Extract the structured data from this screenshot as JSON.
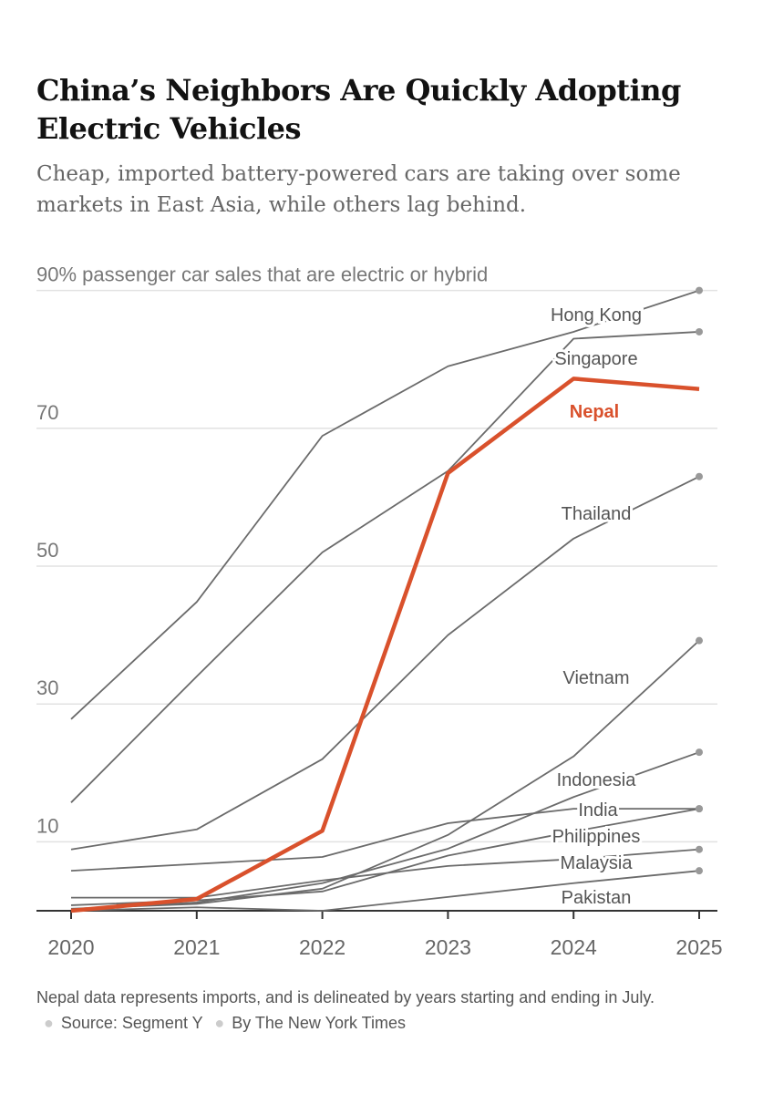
{
  "header": {
    "title": "China’s Neighbors Are Quickly Adopting Electric Vehicles",
    "subtitle": "Cheap, imported battery-powered cars are taking over some markets in East Asia, while others lag behind."
  },
  "chart_data": {
    "type": "line",
    "ylabel": "passenger car sales that are electric or hybrid",
    "y_top_label": "90% passenger car sales that are electric or hybrid",
    "x": [
      2020,
      2021,
      2022,
      2023,
      2024,
      2025
    ],
    "x_tick_labels": [
      "2020",
      "2021",
      "2022",
      "2023",
      "2024",
      "2025"
    ],
    "y_ticks": [
      10,
      30,
      50,
      70
    ],
    "y_tick_labels": [
      "10",
      "30",
      "50",
      "70"
    ],
    "ylim": [
      0,
      90
    ],
    "grid": true,
    "highlight_color": "#d9512c",
    "line_color": "#6b6b6b",
    "series": [
      {
        "name": "Hong Kong",
        "values": [
          27.8,
          44.8,
          68.9,
          79,
          84,
          90
        ]
      },
      {
        "name": "Singapore",
        "values": [
          15.7,
          34,
          52,
          63.8,
          83,
          84
        ]
      },
      {
        "name": "Thailand",
        "values": [
          8.9,
          11.8,
          22,
          40,
          54,
          63
        ]
      },
      {
        "name": "Vietnam",
        "values": [
          0.3,
          1,
          3.2,
          11,
          22.4,
          39.2
        ]
      },
      {
        "name": "Indonesia",
        "values": [
          0.2,
          1.2,
          4,
          9,
          16.5,
          23
        ]
      },
      {
        "name": "India",
        "values": [
          5.8,
          6.8,
          7.8,
          12.7,
          14.8,
          14.8
        ]
      },
      {
        "name": "Philippines",
        "values": [
          0.8,
          1.5,
          2.8,
          8,
          11.5,
          14.8
        ]
      },
      {
        "name": "Malaysia",
        "values": [
          1.9,
          1.9,
          4.4,
          6.5,
          7.5,
          8.9
        ]
      },
      {
        "name": "Pakistan",
        "values": [
          0,
          0.5,
          0,
          2,
          4,
          5.8
        ]
      },
      {
        "name": "Nepal",
        "values": [
          0,
          1.7,
          11.6,
          63.5,
          77.2,
          75.7
        ],
        "highlight": true
      }
    ]
  },
  "footer": {
    "note": "Nepal data represents imports, and is delineated by years starting and ending in July.",
    "source": "Source: Segment Y",
    "credit": "By The New York Times"
  }
}
